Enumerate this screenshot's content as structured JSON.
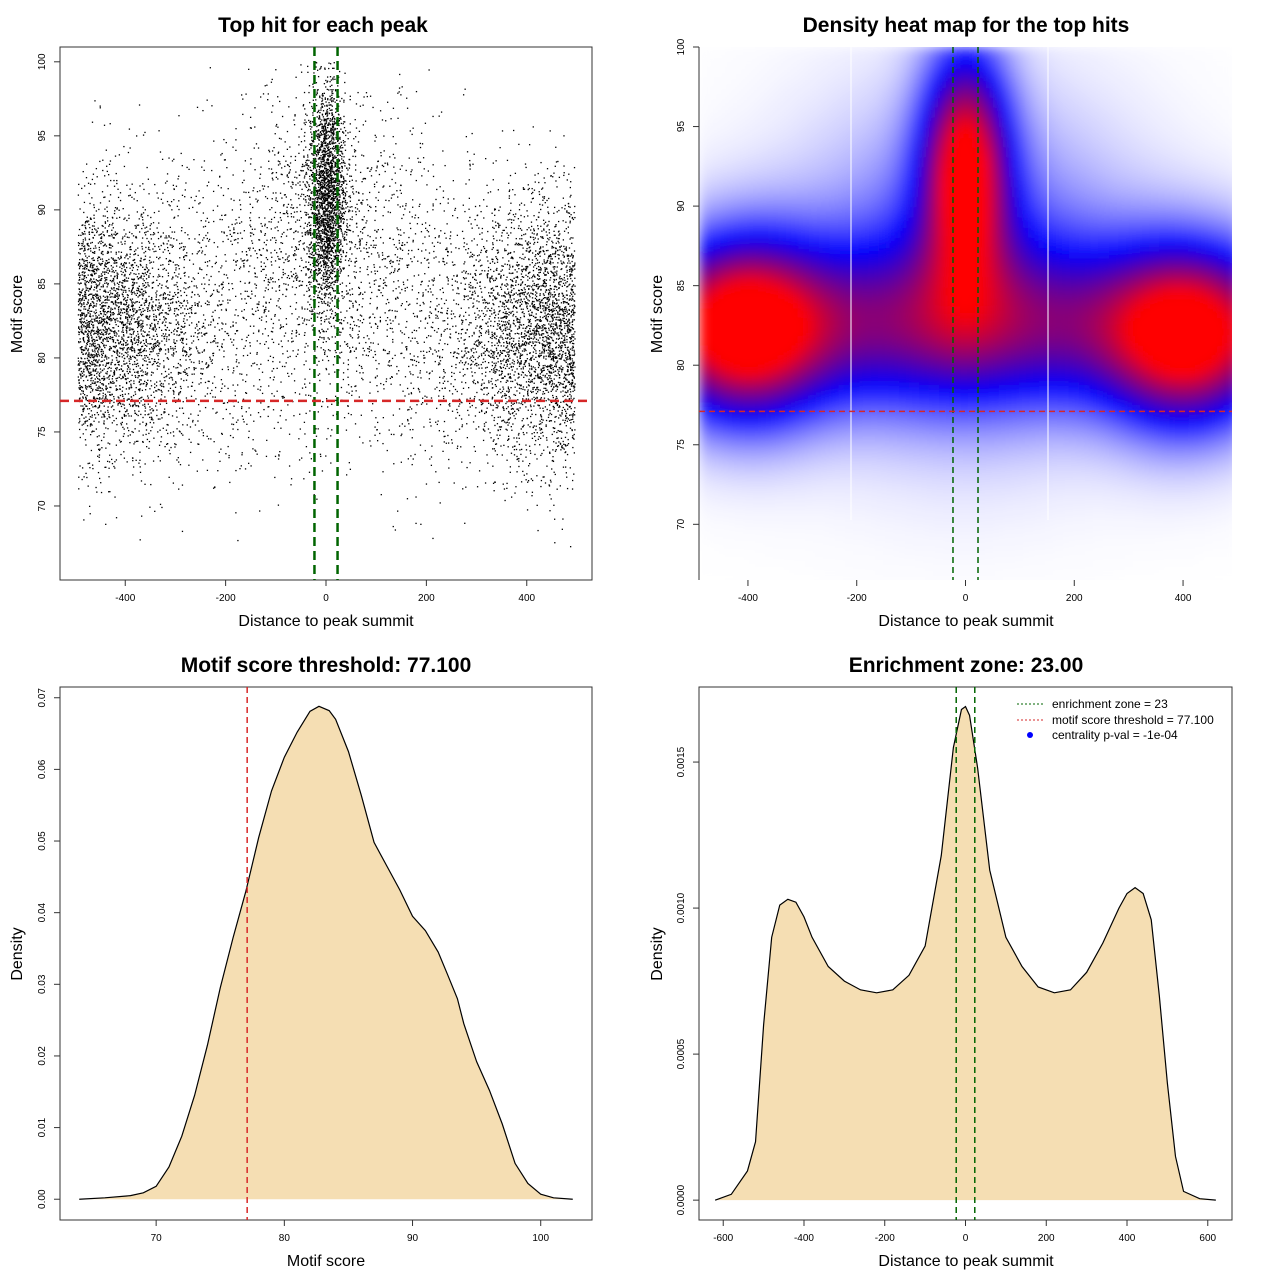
{
  "colors": {
    "green": "#006400",
    "red": "#d62728",
    "fill": "#f5deb3",
    "heat_low": "#ffffff",
    "heat_mid": "#0000ff",
    "heat_high": "#ff0000"
  },
  "chart_data": [
    {
      "id": "scatter",
      "type": "scatter",
      "title": "Top hit for each peak",
      "xlabel": "Distance to peak summit",
      "ylabel": "Motif score",
      "xlim": [
        -530,
        530
      ],
      "ylim": [
        65,
        101
      ],
      "xticks": [
        -400,
        -200,
        0,
        200,
        400
      ],
      "yticks": [
        70,
        75,
        80,
        85,
        90,
        95,
        100
      ],
      "vlines": [
        -23,
        23
      ],
      "hline": 77.1
    },
    {
      "id": "heatmap",
      "type": "heatmap",
      "title": "Density heat map for the top hits",
      "xlabel": "Distance to peak summit",
      "ylabel": "Motif score",
      "xlim": [
        -490,
        490
      ],
      "ylim": [
        66.5,
        100
      ],
      "xticks": [
        -400,
        -200,
        0,
        200,
        400
      ],
      "yticks": [
        70,
        75,
        80,
        85,
        90,
        95,
        100
      ],
      "vlines": [
        -23,
        23
      ],
      "hline": 77.1,
      "clusters": [
        {
          "x": -405,
          "y": 82.2,
          "weight": 0.85
        },
        {
          "x": 0,
          "y": 92.5,
          "weight": 1.0
        },
        {
          "x": 405,
          "y": 81.6,
          "weight": 0.8
        }
      ]
    },
    {
      "id": "score-density",
      "type": "area",
      "title": "Motif score threshold: 77.100",
      "xlabel": "Motif score",
      "ylabel": "Density",
      "xlim": [
        62.5,
        104
      ],
      "ylim": [
        -0.0029,
        0.0715
      ],
      "xticks": [
        70,
        80,
        90,
        100
      ],
      "yticks": [
        0.0,
        0.01,
        0.02,
        0.03,
        0.04,
        0.05,
        0.06,
        0.07
      ],
      "ytick_labels": [
        "0.00",
        "0.01",
        "0.02",
        "0.03",
        "0.04",
        "0.05",
        "0.06",
        "0.07"
      ],
      "vline": 77.1,
      "x": [
        64,
        66,
        68,
        69,
        70,
        71,
        72,
        73,
        74,
        75,
        76,
        77,
        78,
        79,
        80,
        81,
        82,
        82.7,
        83.5,
        84,
        85,
        86,
        87,
        88,
        89,
        90,
        91,
        92,
        92.7,
        93.5,
        94,
        95,
        96,
        97,
        98,
        99,
        100,
        101,
        102.5
      ],
      "y": [
        0.0,
        0.0002,
        0.0005,
        0.0009,
        0.0018,
        0.0045,
        0.0088,
        0.0145,
        0.0215,
        0.0295,
        0.0365,
        0.043,
        0.0505,
        0.057,
        0.0617,
        0.0652,
        0.0681,
        0.0688,
        0.0682,
        0.067,
        0.0625,
        0.0564,
        0.0498,
        0.0465,
        0.0432,
        0.0395,
        0.0375,
        0.0345,
        0.0315,
        0.028,
        0.0245,
        0.0192,
        0.0152,
        0.0105,
        0.005,
        0.0022,
        0.0007,
        0.0002,
        0.0
      ]
    },
    {
      "id": "distance-density",
      "type": "area",
      "title": "Enrichment zone: 23.00",
      "xlabel": "Distance to peak summit",
      "ylabel": "Density",
      "xlim": [
        -660,
        660
      ],
      "ylim": [
        -6.8e-05,
        0.001757
      ],
      "xticks": [
        -600,
        -400,
        -200,
        0,
        200,
        400,
        600
      ],
      "yticks": [
        0.0,
        0.0005,
        0.001,
        0.0015
      ],
      "ytick_labels": [
        "0.0000",
        "0.0005",
        "0.0010",
        "0.0015"
      ],
      "vlines": [
        -23,
        23
      ],
      "x": [
        -620,
        -580,
        -540,
        -520,
        -500,
        -480,
        -460,
        -440,
        -420,
        -400,
        -380,
        -340,
        -300,
        -260,
        -220,
        -180,
        -140,
        -100,
        -60,
        -30,
        -10,
        0,
        10,
        30,
        60,
        100,
        140,
        180,
        220,
        260,
        300,
        340,
        380,
        400,
        420,
        440,
        460,
        480,
        500,
        520,
        540,
        580,
        620
      ],
      "y": [
        0.0,
        2e-05,
        0.0001,
        0.0002,
        0.0006,
        0.0009,
        0.00101,
        0.00103,
        0.00102,
        0.00097,
        0.0009,
        0.0008,
        0.00075,
        0.00072,
        0.00071,
        0.00072,
        0.00077,
        0.00087,
        0.00118,
        0.00155,
        0.00168,
        0.00169,
        0.00166,
        0.00148,
        0.00113,
        0.0009,
        0.0008,
        0.00073,
        0.00071,
        0.00072,
        0.00078,
        0.00088,
        0.001,
        0.00105,
        0.00107,
        0.00105,
        0.00096,
        0.0007,
        0.0004,
        0.00015,
        3e-05,
        5e-06,
        0.0
      ],
      "legend": [
        {
          "label": "enrichment zone = 23",
          "color": "#006400",
          "kind": "line"
        },
        {
          "label": "motif score threshold = 77.100",
          "color": "#d62728",
          "kind": "line"
        },
        {
          "label": "centrality p-val = -1e-04",
          "color": "#0000ff",
          "kind": "point"
        }
      ]
    }
  ]
}
